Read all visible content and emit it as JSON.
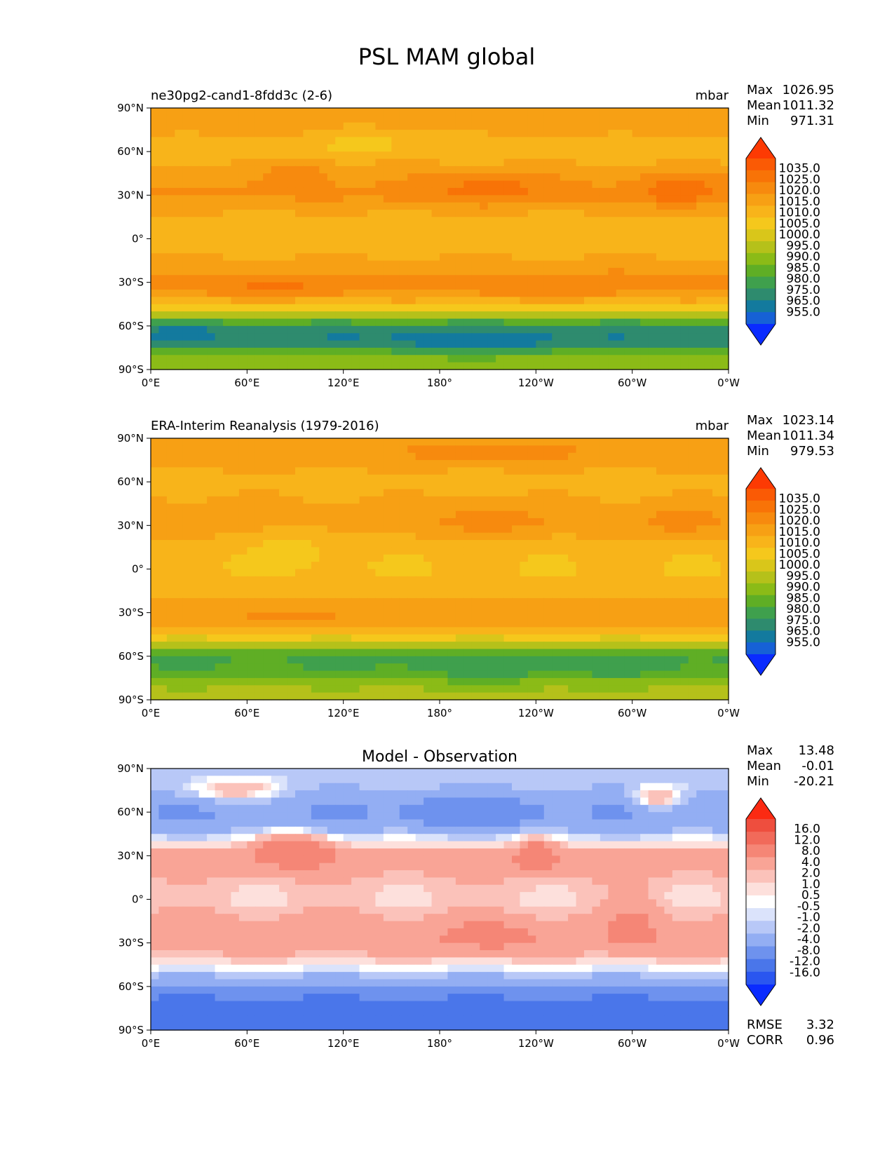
{
  "figure_title": "PSL MAM global",
  "colors": {
    "psl_levels": [
      "#0a2bff",
      "#1661d6",
      "#137a9e",
      "#2e8b6e",
      "#3fa04d",
      "#5fae25",
      "#8bbb17",
      "#b5c11a",
      "#d9c61a",
      "#f5c81c",
      "#f8b41a",
      "#f7a014",
      "#f78a0e",
      "#f87307",
      "#fa5a05",
      "#fd3a03"
    ],
    "diff_levels": [
      "#0a2bff",
      "#2a56f0",
      "#4a76ea",
      "#6e92ee",
      "#93aef3",
      "#b8c8f7",
      "#dbe3fb",
      "#ffffff",
      "#fde0dc",
      "#fbc2ba",
      "#f9a496",
      "#f58676",
      "#f16a5a",
      "#ee4e3e",
      "#fb2a12"
    ]
  },
  "chart_data": [
    {
      "type": "heatmap",
      "panel": "model",
      "title": "ne30pg2-cand1-8fdd3c (2-6)",
      "units": "mbar",
      "stats": {
        "max_label": "Max",
        "max": "1026.95",
        "mean_label": "Mean",
        "mean": "1011.32",
        "min_label": "Min",
        "min": "971.31"
      },
      "x_ticks": [
        "0°E",
        "60°E",
        "120°E",
        "180°",
        "120°W",
        "60°W",
        "0°W"
      ],
      "y_ticks": [
        "90°N",
        "60°N",
        "30°N",
        "0°",
        "30°S",
        "60°S",
        "90°S"
      ],
      "xlim": [
        0,
        360
      ],
      "ylim": [
        -90,
        90
      ],
      "colorbar_labels": [
        "1035.0",
        "1025.0",
        "1020.0",
        "1015.0",
        "1010.0",
        "1005.0",
        "1000.0",
        "995.0",
        "990.0",
        "985.0",
        "980.0",
        "975.0",
        "965.0",
        "955.0"
      ],
      "lat_profile": [
        [
          90,
          1016
        ],
        [
          80,
          1018
        ],
        [
          70,
          1015
        ],
        [
          60,
          1010
        ],
        [
          50,
          1016
        ],
        [
          40,
          1019
        ],
        [
          30,
          1021
        ],
        [
          20,
          1016
        ],
        [
          10,
          1012
        ],
        [
          0,
          1011
        ],
        [
          -10,
          1014
        ],
        [
          -20,
          1018
        ],
        [
          -30,
          1023
        ],
        [
          -40,
          1018
        ],
        [
          -50,
          1003
        ],
        [
          -60,
          980
        ],
        [
          -70,
          975
        ],
        [
          -80,
          990
        ],
        [
          -90,
          996
        ]
      ],
      "anomalies": [
        {
          "lon": 330,
          "lat": 33,
          "dlon": 28,
          "dlat": 12,
          "val": 8
        },
        {
          "lon": 210,
          "lat": 35,
          "dlon": 40,
          "dlat": 12,
          "val": 7
        },
        {
          "lon": 95,
          "lat": 48,
          "dlon": 22,
          "dlat": 12,
          "val": 5
        },
        {
          "lon": 80,
          "lat": -34,
          "dlon": 40,
          "dlat": 7,
          "val": 4
        },
        {
          "lon": 250,
          "lat": -33,
          "dlon": 55,
          "dlat": 8,
          "val": 3
        },
        {
          "lon": 200,
          "lat": -72,
          "dlon": 50,
          "dlat": 8,
          "val": -8
        },
        {
          "lon": 20,
          "lat": -62,
          "dlon": 20,
          "dlat": 6,
          "val": -6
        },
        {
          "lon": 140,
          "lat": 70,
          "dlon": 30,
          "dlat": 8,
          "val": -6
        }
      ]
    },
    {
      "type": "heatmap",
      "panel": "observation",
      "title": "ERA-Interim Reanalysis (1979-2016)",
      "units": "mbar",
      "stats": {
        "max_label": "Max",
        "max": "1023.14",
        "mean_label": "Mean",
        "mean": "1011.34",
        "min_label": "Min",
        "min": "979.53"
      },
      "x_ticks": [
        "0°E",
        "60°E",
        "120°E",
        "180°",
        "120°W",
        "60°W",
        "0°W"
      ],
      "y_ticks": [
        "90°N",
        "60°N",
        "30°N",
        "0°",
        "30°S",
        "60°S",
        "90°S"
      ],
      "xlim": [
        0,
        360
      ],
      "ylim": [
        -90,
        90
      ],
      "colorbar_labels": [
        "1035.0",
        "1025.0",
        "1020.0",
        "1015.0",
        "1010.0",
        "1005.0",
        "1000.0",
        "995.0",
        "990.0",
        "985.0",
        "980.0",
        "975.0",
        "965.0",
        "955.0"
      ],
      "lat_profile": [
        [
          90,
          1018
        ],
        [
          80,
          1019
        ],
        [
          70,
          1016
        ],
        [
          60,
          1012
        ],
        [
          50,
          1015
        ],
        [
          40,
          1017
        ],
        [
          30,
          1018
        ],
        [
          20,
          1014
        ],
        [
          10,
          1011
        ],
        [
          0,
          1010
        ],
        [
          -10,
          1012
        ],
        [
          -20,
          1015
        ],
        [
          -30,
          1019
        ],
        [
          -40,
          1016
        ],
        [
          -50,
          1002
        ],
        [
          -60,
          984
        ],
        [
          -70,
          986
        ],
        [
          -80,
          994
        ],
        [
          -90,
          999
        ]
      ],
      "anomalies": [
        {
          "lon": 330,
          "lat": 33,
          "dlon": 25,
          "dlat": 10,
          "val": 5
        },
        {
          "lon": 210,
          "lat": 33,
          "dlon": 35,
          "dlat": 10,
          "val": 5
        },
        {
          "lon": 215,
          "lat": 80,
          "dlon": 45,
          "dlat": 8,
          "val": 4
        },
        {
          "lon": 90,
          "lat": 20,
          "dlon": 30,
          "dlat": 15,
          "val": -4
        },
        {
          "lon": 90,
          "lat": -32,
          "dlon": 35,
          "dlat": 6,
          "val": 3
        },
        {
          "lon": 215,
          "lat": -70,
          "dlon": 60,
          "dlat": 10,
          "val": -4
        },
        {
          "lon": 300,
          "lat": -68,
          "dlon": 35,
          "dlat": 8,
          "val": -3
        }
      ]
    },
    {
      "type": "heatmap",
      "panel": "difference",
      "title": "Model - Observation",
      "units": "",
      "stats": {
        "max_label": "Max",
        "max": "13.48",
        "mean_label": "Mean",
        "mean": "-0.01",
        "min_label": "Min",
        "min": "-20.21"
      },
      "x_ticks": [
        "0°E",
        "60°E",
        "120°E",
        "180°",
        "120°W",
        "60°W",
        "0°W"
      ],
      "y_ticks": [
        "90°N",
        "60°N",
        "30°N",
        "0°",
        "30°S",
        "60°S",
        "90°S"
      ],
      "xlim": [
        0,
        360
      ],
      "ylim": [
        -90,
        90
      ],
      "colorbar_labels": [
        "16.0",
        "12.0",
        "8.0",
        "4.0",
        "2.0",
        "1.0",
        "0.5",
        "-0.5",
        "-1.0",
        "-2.0",
        "-4.0",
        "-8.0",
        "-12.0",
        "-16.0"
      ],
      "lat_profile": [
        [
          90,
          -2
        ],
        [
          80,
          -1.5
        ],
        [
          70,
          -3
        ],
        [
          60,
          -4
        ],
        [
          50,
          -3
        ],
        [
          40,
          0
        ],
        [
          30,
          3
        ],
        [
          20,
          2.5
        ],
        [
          10,
          1.5
        ],
        [
          0,
          1
        ],
        [
          -10,
          2
        ],
        [
          -20,
          3
        ],
        [
          -30,
          3.5
        ],
        [
          -40,
          1.5
        ],
        [
          -50,
          -1
        ],
        [
          -60,
          -4
        ],
        [
          -70,
          -9
        ],
        [
          -80,
          -12
        ],
        [
          -90,
          -10
        ]
      ],
      "anomalies": [
        {
          "lon": 90,
          "lat": 35,
          "dlon": 22,
          "dlat": 12,
          "val": 6
        },
        {
          "lon": 240,
          "lat": 30,
          "dlon": 12,
          "dlat": 12,
          "val": 5
        },
        {
          "lon": 300,
          "lat": -15,
          "dlon": 15,
          "dlat": 20,
          "val": 2
        },
        {
          "lon": 315,
          "lat": 70,
          "dlon": 15,
          "dlat": 8,
          "val": 5
        },
        {
          "lon": 50,
          "lat": 75,
          "dlon": 30,
          "dlat": 8,
          "val": 4
        },
        {
          "lon": 200,
          "lat": 60,
          "dlon": 40,
          "dlat": 10,
          "val": -3
        },
        {
          "lon": 210,
          "lat": -25,
          "dlon": 30,
          "dlat": 10,
          "val": 2
        }
      ],
      "footer": {
        "rmse_label": "RMSE",
        "rmse": "3.32",
        "corr_label": "CORR",
        "corr": "0.96"
      }
    }
  ]
}
